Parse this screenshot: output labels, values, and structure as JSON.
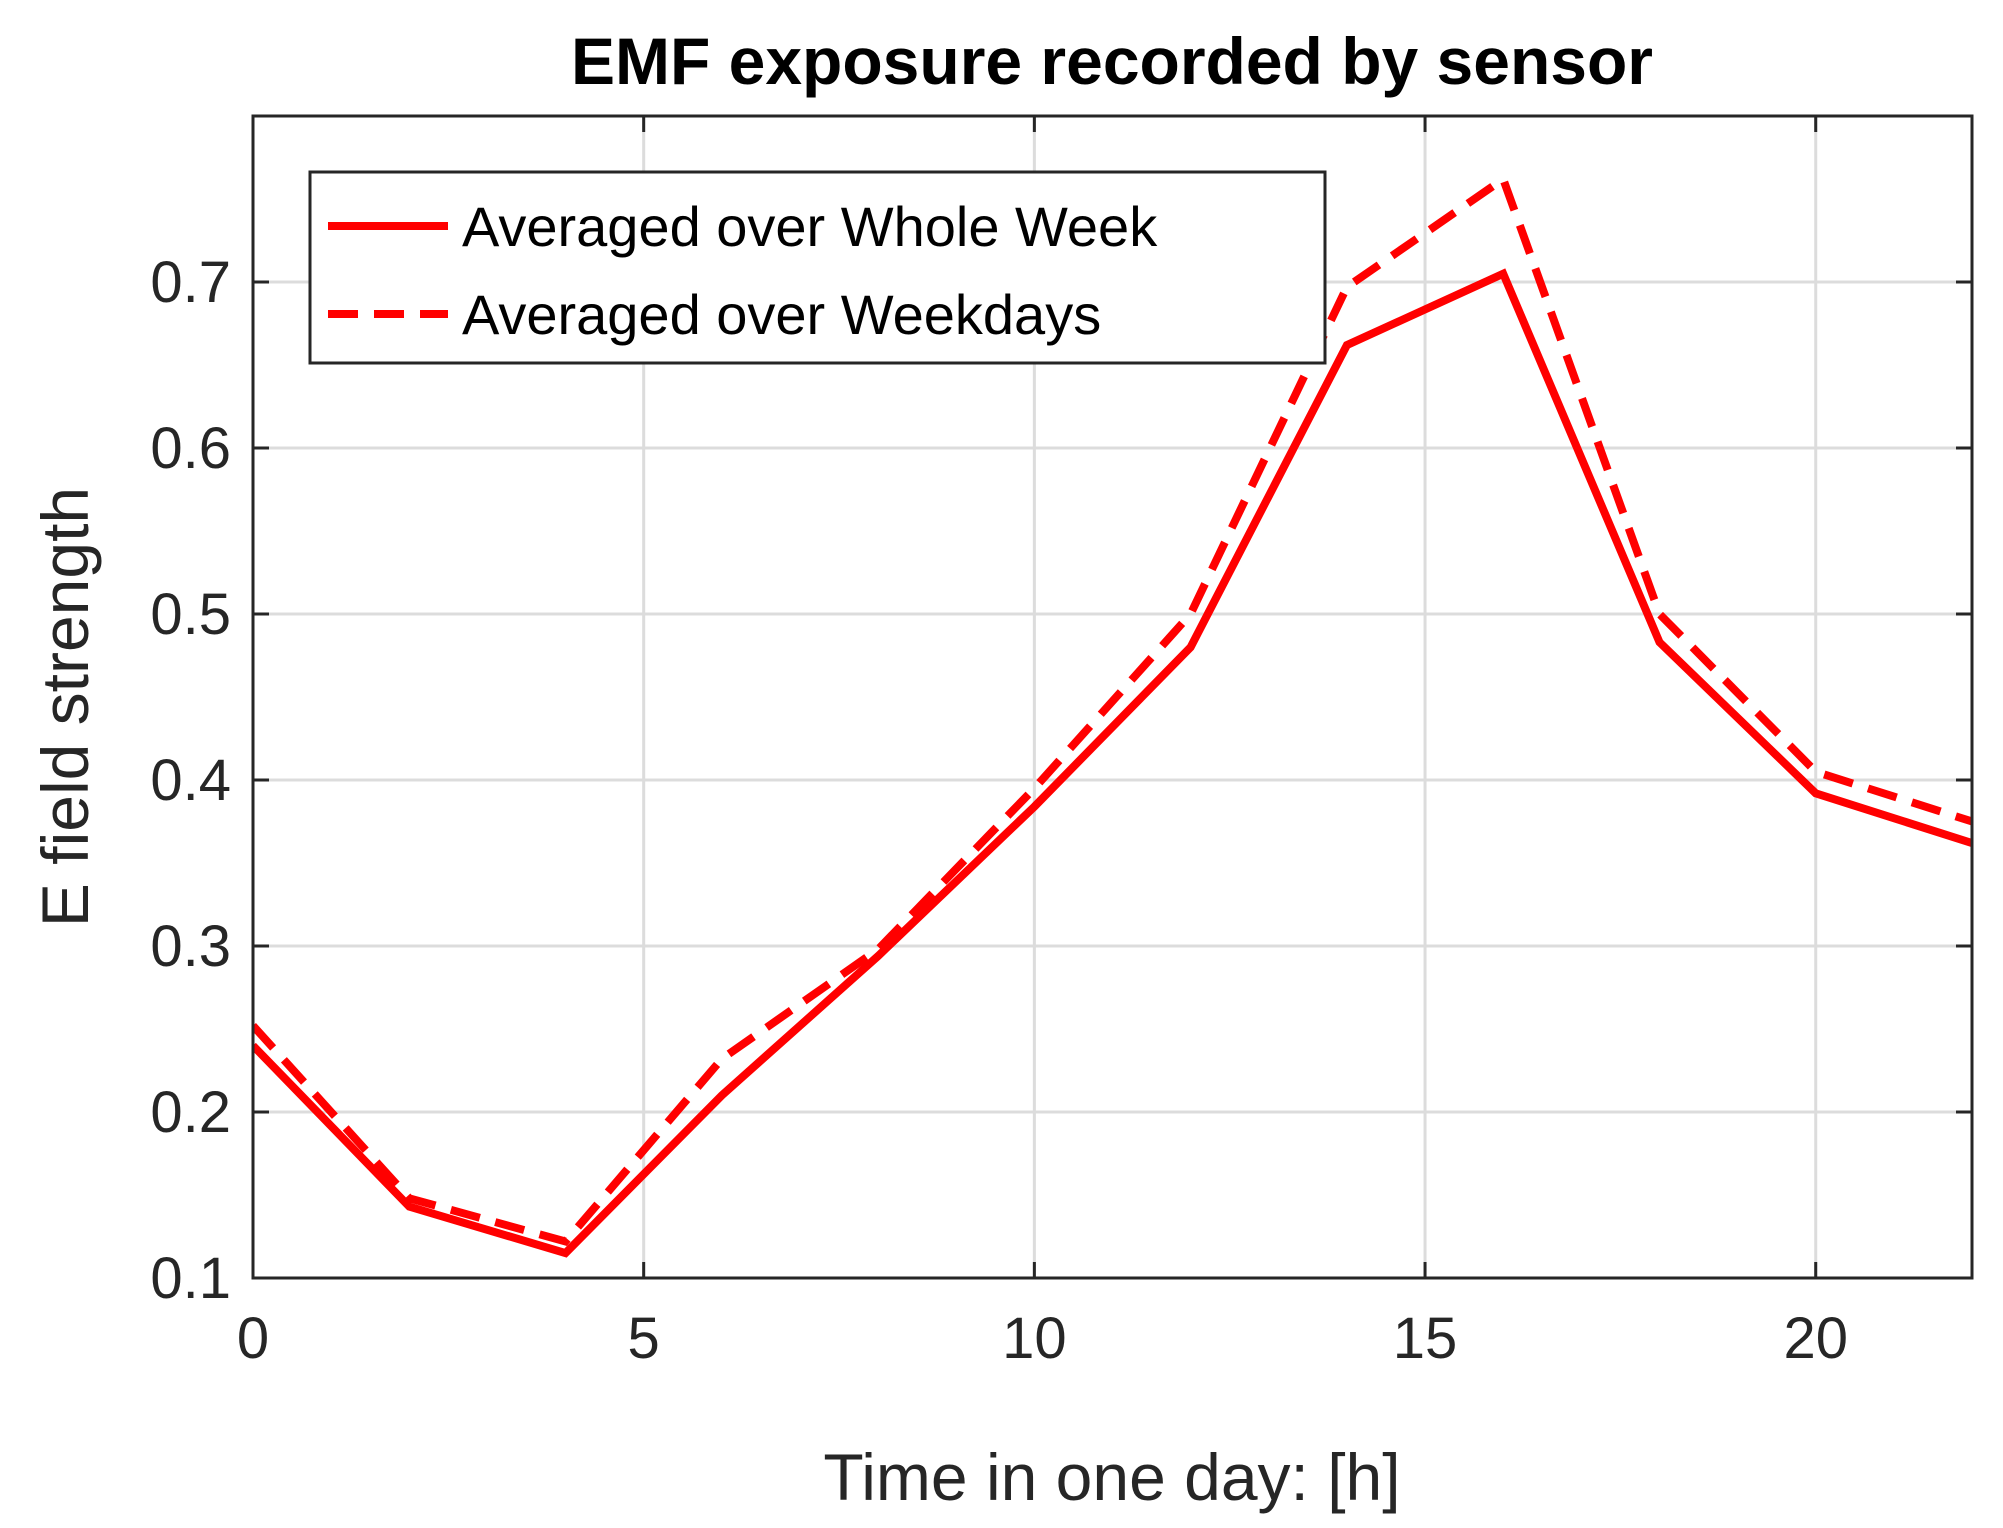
{
  "chart_data": {
    "type": "line",
    "title": "EMF exposure recorded by sensor",
    "xlabel": "Time in one day: [h]",
    "ylabel": "E field strength",
    "xlim": [
      0,
      22
    ],
    "ylim": [
      0.1,
      0.8
    ],
    "xticks": [
      0,
      5,
      10,
      15,
      20
    ],
    "xtick_labels": [
      "0",
      "5",
      "10",
      "15",
      "20"
    ],
    "yticks": [
      0.1,
      0.2,
      0.3,
      0.4,
      0.5,
      0.6,
      0.7
    ],
    "ytick_labels": [
      "0.1",
      "0.2",
      "0.3",
      "0.4",
      "0.5",
      "0.6",
      "0.7"
    ],
    "grid": true,
    "legend_position": "top-left",
    "x": [
      0,
      2,
      4,
      6,
      8,
      10,
      12,
      14,
      16,
      18,
      20,
      22
    ],
    "series": [
      {
        "name": "Averaged over Whole Week",
        "style": "solid",
        "color": "#ff0000",
        "values": [
          0.24,
          0.143,
          0.115,
          0.21,
          0.294,
          0.384,
          0.48,
          0.662,
          0.705,
          0.483,
          0.392,
          0.362
        ]
      },
      {
        "name": "Averaged over Weekdays",
        "style": "dashed",
        "color": "#ff0000",
        "values": [
          0.252,
          0.148,
          0.122,
          0.232,
          0.298,
          0.395,
          0.5,
          0.697,
          0.762,
          0.5,
          0.405,
          0.375
        ]
      }
    ]
  }
}
